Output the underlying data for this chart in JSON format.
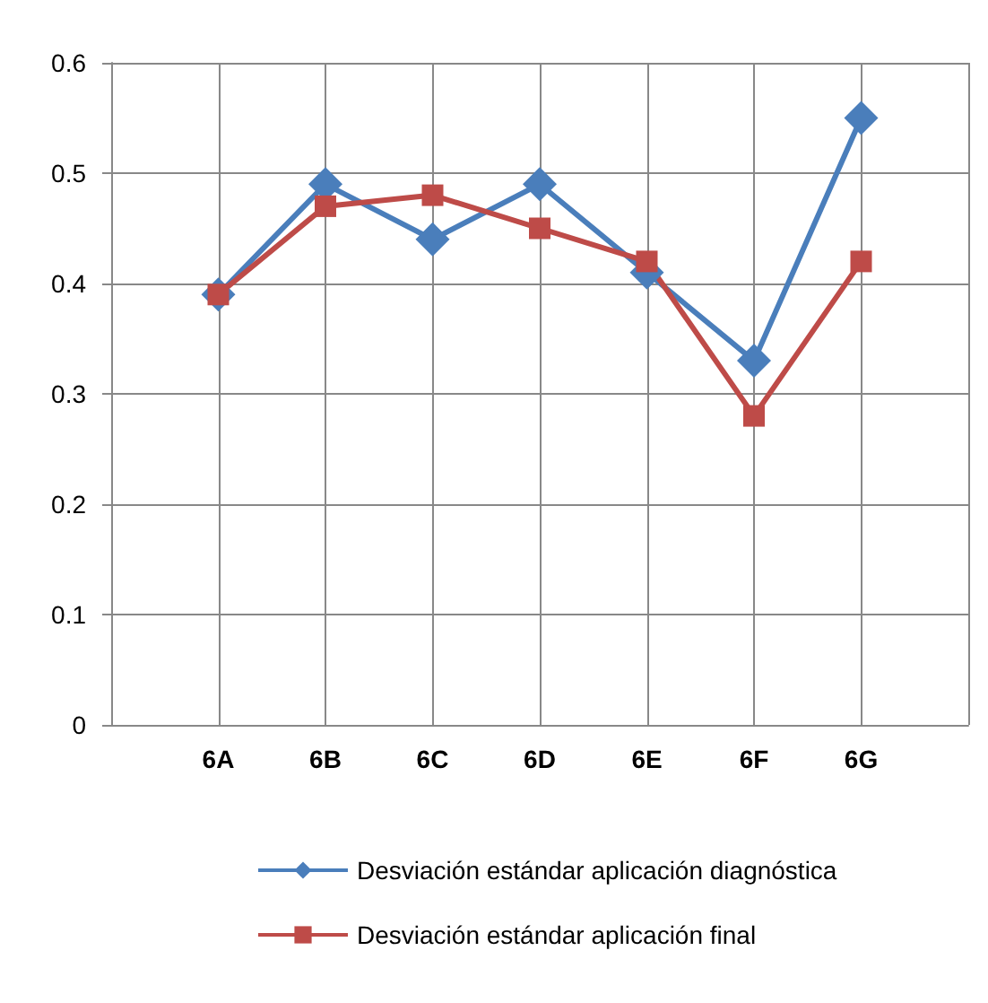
{
  "chart_data": {
    "type": "line",
    "categories": [
      null,
      "6A",
      "6B",
      "6C",
      "6D",
      "6E",
      "6F",
      "6G",
      null
    ],
    "series": [
      {
        "name": "Desviación estándar aplicación diagnóstica",
        "color": "#4a7ebb",
        "marker": "diamond",
        "values": [
          null,
          0.39,
          0.49,
          0.44,
          0.49,
          0.41,
          0.33,
          0.55,
          null
        ]
      },
      {
        "name": "Desviación estándar aplicación final",
        "color": "#be4b48",
        "marker": "square",
        "values": [
          null,
          0.39,
          0.47,
          0.48,
          0.45,
          0.42,
          0.28,
          0.42,
          null
        ]
      }
    ],
    "ylim": [
      0,
      0.6
    ],
    "yticks": [
      0,
      0.1,
      0.2,
      0.3,
      0.4,
      0.5,
      0.6
    ],
    "grid": true,
    "legend": "bottom"
  }
}
